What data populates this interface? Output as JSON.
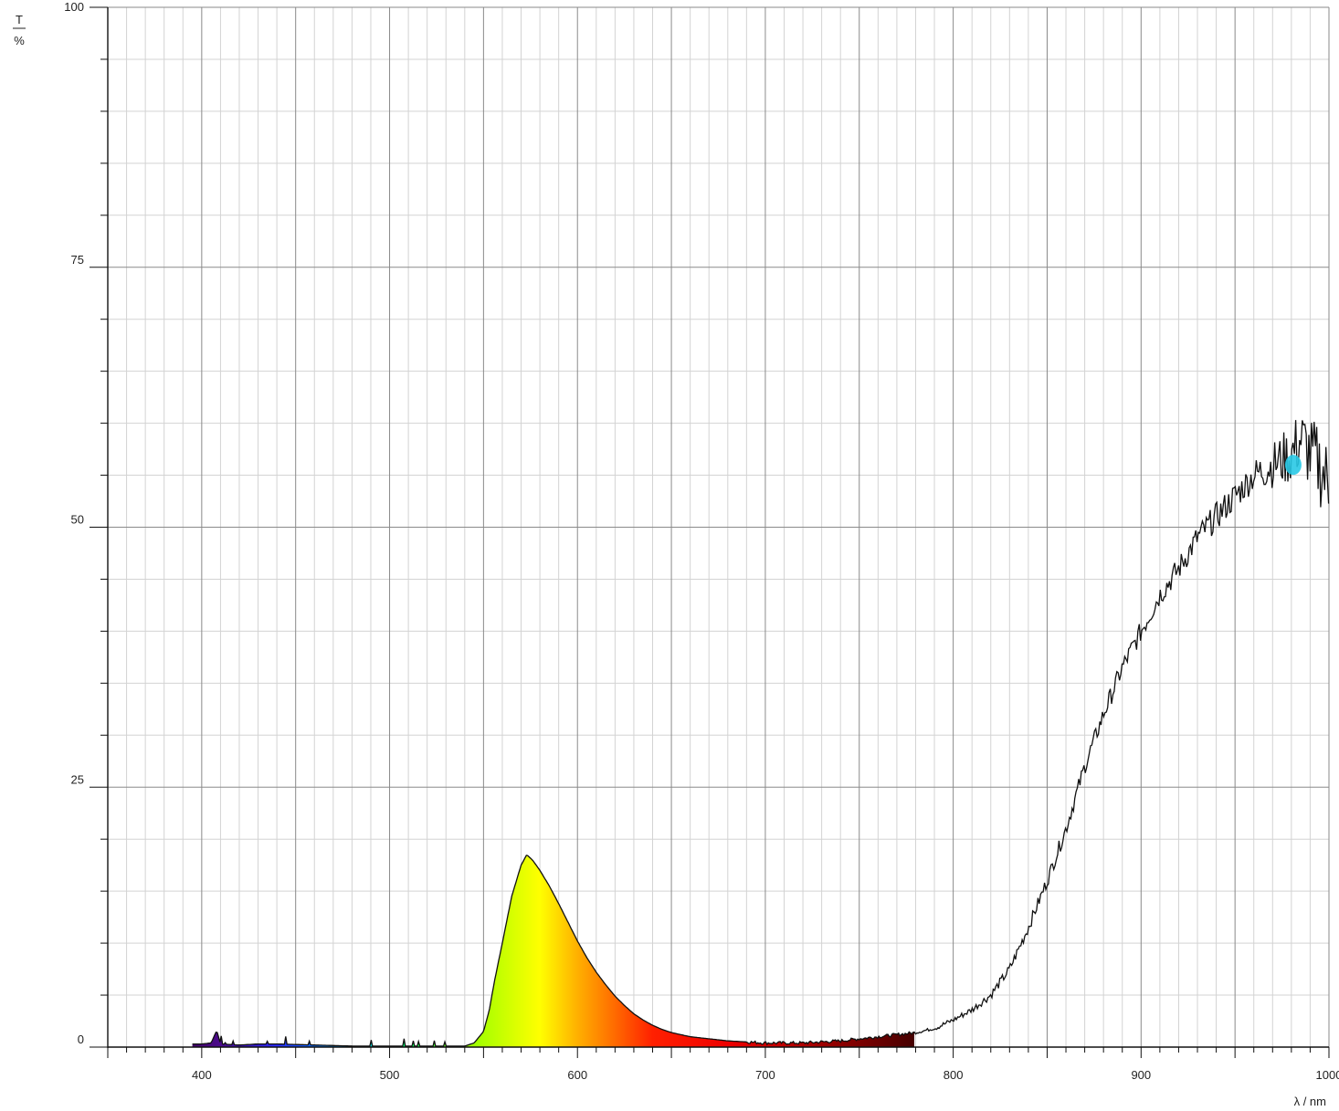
{
  "chart_data": {
    "type": "area",
    "title": "",
    "ylabel_top": "T",
    "ylabel_bottom": "%",
    "xlabel": "λ / nm",
    "xlim": [
      350,
      1000
    ],
    "ylim": [
      0,
      100
    ],
    "grid": true,
    "x_ticks": [
      400,
      500,
      600,
      700,
      800,
      900,
      1000
    ],
    "y_ticks": [
      0,
      25,
      50,
      75,
      100
    ],
    "fill": "visible-spectrum gradient under curve for 380–780 nm",
    "series": [
      {
        "x": [
          395,
          400,
          405,
          408,
          410,
          420,
          430,
          440,
          460,
          480,
          500,
          520,
          540,
          545,
          550,
          553,
          556,
          560,
          565,
          570,
          573,
          576,
          580,
          585,
          590,
          595,
          600,
          605,
          610,
          615,
          620,
          625,
          630,
          635,
          640,
          645,
          650,
          660,
          670,
          680,
          690,
          700,
          710,
          720,
          730,
          740,
          750,
          760,
          770,
          780,
          790,
          800,
          810,
          820,
          830,
          840,
          850,
          860,
          870,
          880,
          890,
          900,
          910,
          920,
          930,
          940,
          950,
          960,
          970,
          980,
          985,
          990,
          995,
          1000
        ],
        "y": [
          0.3,
          0.3,
          0.4,
          1.6,
          0.3,
          0.2,
          0.3,
          0.3,
          0.2,
          0.1,
          0.1,
          0.1,
          0.1,
          0.4,
          1.5,
          3.5,
          6.5,
          10.0,
          14.5,
          17.5,
          18.5,
          18.0,
          17.0,
          15.5,
          13.8,
          12.0,
          10.2,
          8.6,
          7.2,
          6.0,
          4.9,
          4.0,
          3.2,
          2.6,
          2.1,
          1.7,
          1.4,
          1.0,
          0.8,
          0.6,
          0.5,
          0.4,
          0.4,
          0.4,
          0.5,
          0.6,
          0.8,
          1.0,
          1.2,
          1.4,
          1.8,
          2.6,
          3.6,
          5.0,
          7.5,
          11.5,
          16.0,
          21.0,
          27.0,
          32.0,
          36.5,
          40.0,
          43.5,
          46.0,
          49.0,
          51.0,
          53.0,
          55.0,
          56.0,
          57.0,
          58.5,
          57.0,
          56.0,
          54.0
        ]
      }
    ],
    "marker": {
      "x": 981,
      "y": 56,
      "color": "#29c9e6"
    },
    "colors": {
      "curve": "#111111",
      "grid_major": "#8a8a8a",
      "grid_minor": "#d3d3d3",
      "axis": "#111111"
    }
  }
}
